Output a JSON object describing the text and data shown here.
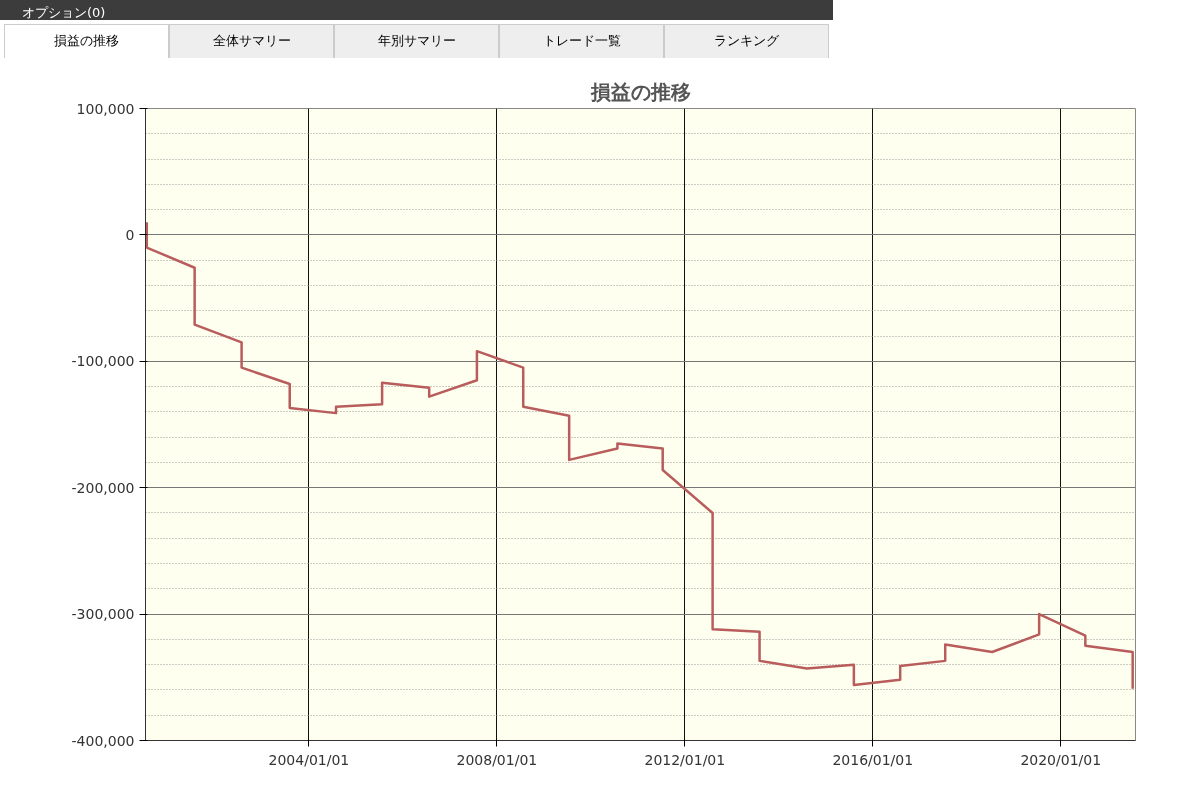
{
  "chart_data": {
    "type": "line",
    "title": "損益の推移",
    "annotations": [
      "オプション(0)",
      "損益の推移",
      "全体サマリー",
      "年別サマリー",
      "トレード一覧",
      "ランキング"
    ],
    "series": [
      {
        "color": "#b85c5c",
        "x": [
          "2000-07-20",
          "2000-07-20",
          "2001-07-27",
          "2001-07-27",
          "2002-07-27",
          "2002-07-27",
          "2003-08-05",
          "2003-08-05",
          "2004-07-30",
          "2004-07-30",
          "2005-07-23",
          "2005-07-23",
          "2006-07-24",
          "2006-07-24",
          "2007-07-30",
          "2007-07-30",
          "2008-07-24",
          "2008-07-24",
          "2009-07-16",
          "2009-07-16",
          "2010-07-26",
          "2010-07-26",
          "2011-07-13",
          "2011-07-13",
          "2012-08-04",
          "2012-08-04",
          "2013-08-04",
          "2013-08-04",
          "2014-08-07",
          "2015-08-07",
          "2015-08-07",
          "2016-08-01",
          "2016-08-01",
          "2017-07-17",
          "2017-07-17",
          "2018-07-17",
          "2019-07-17",
          "2019-07-17",
          "2020-07-10",
          "2020-07-10",
          "2021-07-13",
          "2021-07-13"
        ],
        "values": [
          10000,
          -10000,
          -26000,
          -71000,
          -85000,
          -105000,
          -118000,
          -137000,
          -141000,
          -136000,
          -134000,
          -117000,
          -121000,
          -128000,
          -115000,
          -92000,
          -105000,
          -136000,
          -143000,
          -178000,
          -169000,
          -165000,
          -169000,
          -186000,
          -220000,
          -312000,
          -314000,
          -337000,
          -343000,
          -340000,
          -356000,
          -352000,
          -341000,
          -337000,
          -324000,
          -330000,
          -316000,
          -300000,
          -317000,
          -325000,
          -330000,
          -359000
        ]
      }
    ],
    "xlim": [
      "2000-07-10",
      "2021-08-04"
    ],
    "xticks": [
      {
        "value": "2004-01-01",
        "label": "2004/01/01"
      },
      {
        "value": "2008-01-01",
        "label": "2008/01/01"
      },
      {
        "value": "2012-01-01",
        "label": "2012/01/01"
      },
      {
        "value": "2016-01-01",
        "label": "2016/01/01"
      },
      {
        "value": "2020-01-01",
        "label": "2020/01/01"
      }
    ],
    "ylim": [
      -400000,
      100000
    ],
    "yticks": [
      {
        "value": -400000,
        "label": "-400,000"
      },
      {
        "value": -300000,
        "label": "-300,000"
      },
      {
        "value": -200000,
        "label": "-200,000"
      },
      {
        "value": -100000,
        "label": "-100,000"
      },
      {
        "value": 0,
        "label": "0"
      },
      {
        "value": 100000,
        "label": "100,000"
      }
    ],
    "grid": true,
    "line_style": "solid",
    "marker": "none"
  }
}
